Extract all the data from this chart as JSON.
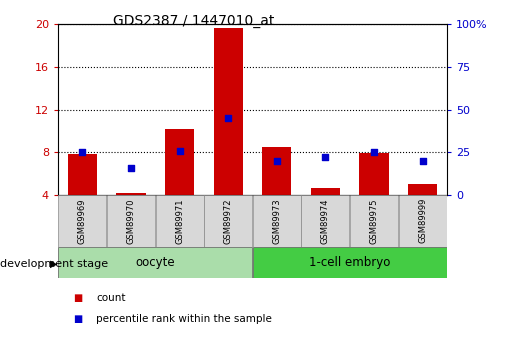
{
  "title": "GDS2387 / 1447010_at",
  "samples": [
    "GSM89969",
    "GSM89970",
    "GSM89971",
    "GSM89972",
    "GSM89973",
    "GSM89974",
    "GSM89975",
    "GSM89999"
  ],
  "count_values": [
    7.8,
    4.15,
    10.2,
    19.6,
    8.5,
    4.65,
    7.95,
    5.05
  ],
  "count_base": 4.0,
  "percentile_values": [
    25.0,
    16.0,
    26.0,
    45.0,
    20.0,
    22.0,
    25.0,
    20.0
  ],
  "groups": [
    {
      "label": "oocyte",
      "indices": [
        0,
        1,
        2,
        3
      ],
      "color": "#aaddaa"
    },
    {
      "label": "1-cell embryo",
      "indices": [
        4,
        5,
        6,
        7
      ],
      "color": "#44cc44"
    }
  ],
  "ylim_left": [
    4,
    20
  ],
  "ylim_right": [
    0,
    100
  ],
  "yticks_left": [
    4,
    8,
    12,
    16,
    20
  ],
  "yticks_right": [
    0,
    25,
    50,
    75,
    100
  ],
  "bar_color": "#cc0000",
  "dot_color": "#0000cc",
  "bar_width": 0.6,
  "left_tick_color": "#cc0000",
  "right_tick_color": "#0000cc",
  "group_label": "development stage",
  "legend_items": [
    {
      "label": "count",
      "color": "#cc0000"
    },
    {
      "label": "percentile rank within the sample",
      "color": "#0000cc"
    }
  ]
}
